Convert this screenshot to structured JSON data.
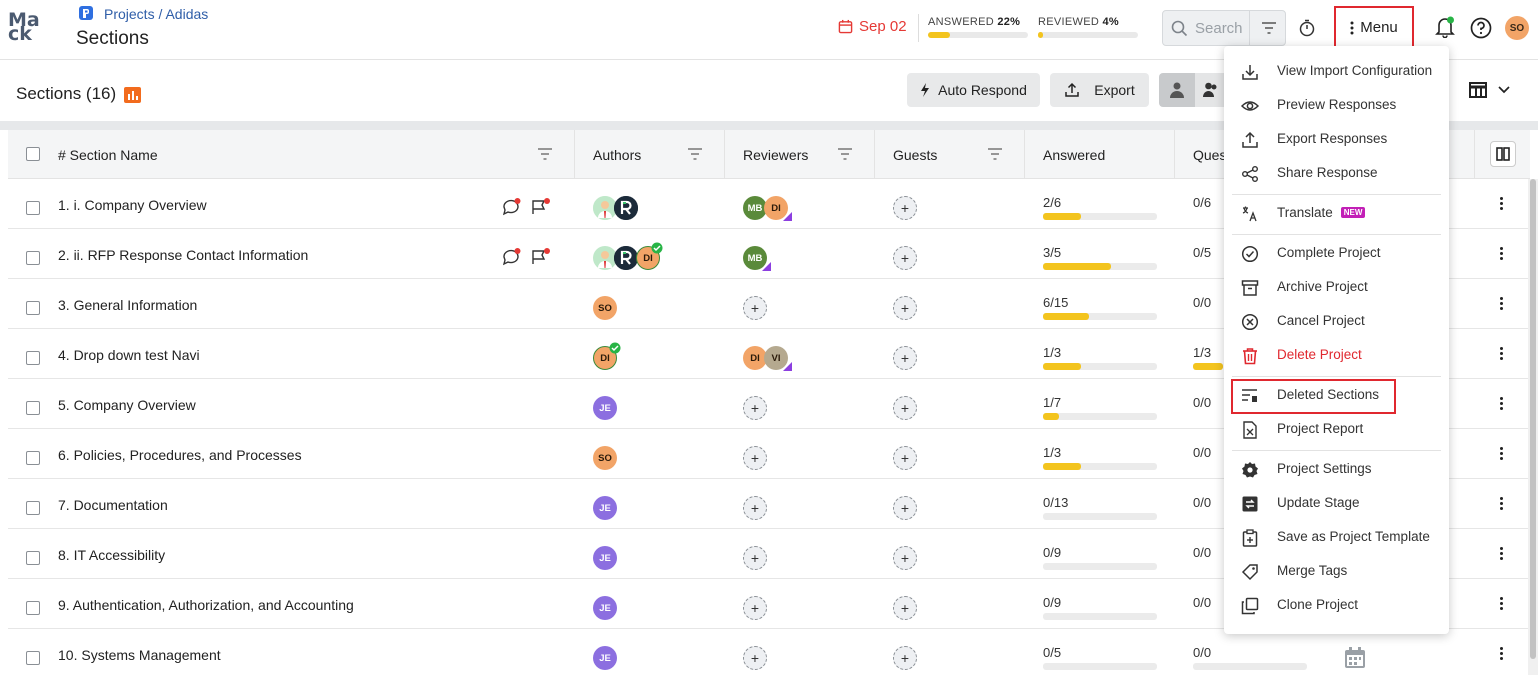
{
  "header": {
    "logo_top": "Ma",
    "logo_bottom": "ck",
    "breadcrumb": "Projects / Adidas",
    "title": "Sections",
    "due_date": "Sep 02",
    "answered_label": "ANSWERED",
    "answered_pct": "22%",
    "answered_fraction": 0.22,
    "reviewed_label": "REVIEWED",
    "reviewed_pct": "4%",
    "reviewed_fraction": 0.04,
    "search_placeholder": "Search",
    "menu_label": "Menu",
    "user_initials": "SO"
  },
  "toolbar": {
    "sections_title": "Sections (16)",
    "auto_respond": "Auto Respond",
    "export": "Export"
  },
  "table": {
    "columns": {
      "name": "# Section Name",
      "authors": "Authors",
      "reviewers": "Reviewers",
      "guests": "Guests",
      "answered": "Answered",
      "questions": "Ques"
    },
    "rows": [
      {
        "name": "1. i. Company Overview",
        "answered": "2/6",
        "answered_fraction": 0.33,
        "q": "0/6"
      },
      {
        "name": "2. ii. RFP Response Contact Information",
        "answered": "3/5",
        "answered_fraction": 0.6,
        "q": "0/5"
      },
      {
        "name": "3. General Information",
        "answered": "6/15",
        "answered_fraction": 0.4,
        "q": "0/0"
      },
      {
        "name": "4. Drop down test Navi",
        "answered": "1/3",
        "answered_fraction": 0.33,
        "q": "1/3"
      },
      {
        "name": "5. Company Overview",
        "answered": "1/7",
        "answered_fraction": 0.14,
        "q": "0/0"
      },
      {
        "name": "6. Policies, Procedures, and Processes",
        "answered": "1/3",
        "answered_fraction": 0.33,
        "q": "0/0"
      },
      {
        "name": "7. Documentation",
        "answered": "0/13",
        "answered_fraction": 0,
        "q": "0/0"
      },
      {
        "name": "8. IT Accessibility",
        "answered": "0/9",
        "answered_fraction": 0,
        "q": "0/0"
      },
      {
        "name": "9. Authentication, Authorization, and Accounting",
        "answered": "0/9",
        "answered_fraction": 0,
        "q": "0/0"
      },
      {
        "name": "10. Systems Management",
        "answered": "0/5",
        "answered_fraction": 0,
        "q": "0/0"
      }
    ],
    "initials": {
      "mb": "MB",
      "di": "DI",
      "so": "SO",
      "je": "JE",
      "vi": "VI"
    },
    "plus": "+"
  },
  "menu": {
    "items": [
      {
        "label": "View Import Configuration",
        "icon": "download-icon"
      },
      {
        "label": "Preview Responses",
        "icon": "eye-icon"
      },
      {
        "label": "Export Responses",
        "icon": "upload-icon"
      },
      {
        "label": "Share Response",
        "icon": "share-icon"
      },
      {
        "label": "Translate",
        "icon": "translate-icon",
        "badge": "NEW"
      },
      {
        "label": "Complete Project",
        "icon": "check-circle-icon"
      },
      {
        "label": "Archive Project",
        "icon": "archive-icon"
      },
      {
        "label": "Cancel Project",
        "icon": "cancel-circle-icon"
      },
      {
        "label": "Delete Project",
        "icon": "trash-icon"
      },
      {
        "label": "Deleted Sections",
        "icon": "deleted-sections-icon"
      },
      {
        "label": "Project Report",
        "icon": "report-icon"
      },
      {
        "label": "Project Settings",
        "icon": "settings-icon"
      },
      {
        "label": "Update Stage",
        "icon": "update-stage-icon"
      },
      {
        "label": "Save as Project Template",
        "icon": "template-icon"
      },
      {
        "label": "Merge Tags",
        "icon": "tag-icon"
      },
      {
        "label": "Clone Project",
        "icon": "clone-icon"
      }
    ]
  },
  "colors": {
    "accent_red": "#e0282f",
    "progress_yellow": "#f3c41e",
    "link_blue": "#2f5ea8",
    "avatar_orange": "#f2a467",
    "avatar_green": "#5a8a3a",
    "avatar_purple": "#8c6fe0"
  }
}
